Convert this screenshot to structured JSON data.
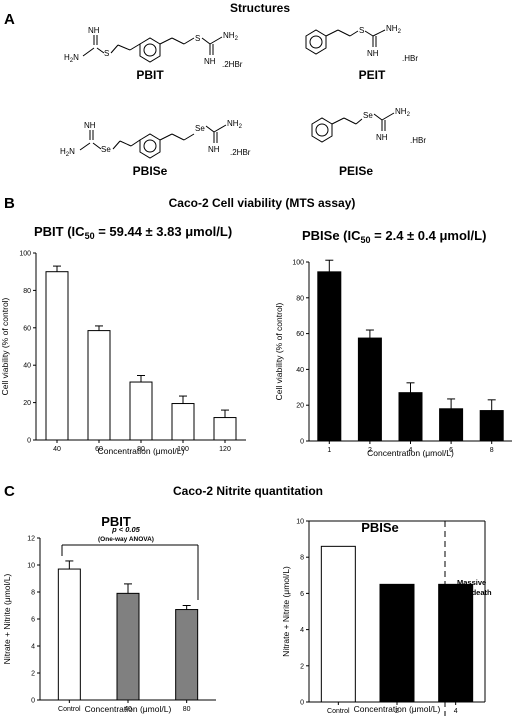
{
  "panelA": {
    "letter": "A",
    "title": "Structures",
    "molecules": [
      {
        "name": "PBIT",
        "salt": ".2HBr",
        "atom": "S"
      },
      {
        "name": "PEIT",
        "salt": ".HBr",
        "atom": "S"
      },
      {
        "name": "PBISe",
        "salt": ".2HBr",
        "atom": "Se"
      },
      {
        "name": "PEISe",
        "salt": ".HBr",
        "atom": "Se"
      }
    ],
    "groups": {
      "nh2": "NH",
      "nh2_sub": "2",
      "h2n": "H",
      "h2n_sub": "2",
      "h2n_n": "N",
      "nh": "NH"
    }
  },
  "panelB": {
    "letter": "B",
    "title": "Caco-2 Cell viability (MTS assay)",
    "charts": [
      {
        "title_pre": "PBIT (IC",
        "title_sub": "50",
        "title_post": " = 59.44 ± 3.83 μmol/L)"
      },
      {
        "title_pre": "PBISe (IC",
        "title_sub": "50",
        "title_post": " = 2.4 ± 0.4 μmol/L)"
      }
    ]
  },
  "panelC": {
    "letter": "C",
    "title": "Caco-2 Nitrite quantitation",
    "significance": {
      "line1": "p < 0.05",
      "line2": "(One-way ANOVA)"
    },
    "annotation": {
      "line1": "Massive",
      "line2": "cell death"
    }
  },
  "chart_data": [
    {
      "type": "bar",
      "title": "PBIT (IC50 = 59.44 ± 3.83 μmol/L)",
      "categories": [
        "40",
        "60",
        "80",
        "100",
        "120"
      ],
      "values": [
        90,
        58.5,
        31,
        19.5,
        12
      ],
      "errors": [
        3,
        2.5,
        3.5,
        4,
        4
      ],
      "xlabel": "Concentration (μmol/L)",
      "ylabel": "Cell viability (% of control)",
      "ylim": [
        0,
        100
      ],
      "yticks": [
        "0",
        "20",
        "40",
        "60",
        "80",
        "100"
      ],
      "fill": "#ffffff"
    },
    {
      "type": "bar",
      "title": "PBISe (IC50 = 2.4 ± 0.4 μmol/L)",
      "categories": [
        "1",
        "2",
        "4",
        "6",
        "8"
      ],
      "values": [
        94.5,
        57.5,
        27,
        18,
        17
      ],
      "errors": [
        6.5,
        4.5,
        5.5,
        5.5,
        6
      ],
      "xlabel": "Concentration (μmol/L)",
      "ylabel": "Cell viability (% of control)",
      "ylim": [
        0,
        100
      ],
      "yticks": [
        "0",
        "20",
        "40",
        "60",
        "80",
        "100"
      ],
      "fill": "#000000"
    },
    {
      "type": "bar",
      "title": "PBIT",
      "categories": [
        "Control",
        "40",
        "80"
      ],
      "values": [
        9.7,
        7.9,
        6.7
      ],
      "errors": [
        0.6,
        0.7,
        0.3
      ],
      "fills": [
        "#ffffff",
        "#808080",
        "#808080"
      ],
      "xlabel": "Concentration (μmol/L)",
      "ylabel": "Nitrate + Nitrite (μmol/L)",
      "ylim": [
        0,
        12
      ],
      "yticks": [
        "0",
        "2",
        "4",
        "6",
        "8",
        "10",
        "12"
      ]
    },
    {
      "type": "bar",
      "title": "PBISe",
      "categories": [
        "Control",
        "2",
        "4"
      ],
      "values": [
        8.6,
        6.5,
        6.5
      ],
      "fills": [
        "#ffffff",
        "#000000",
        "#000000"
      ],
      "xlabel": "Concentration (μmol/L)",
      "ylabel": "Nitrate + Nitrite (μmol/L)",
      "ylim": [
        0,
        10
      ],
      "yticks": [
        "0",
        "2",
        "4",
        "6",
        "8",
        "10"
      ]
    }
  ]
}
